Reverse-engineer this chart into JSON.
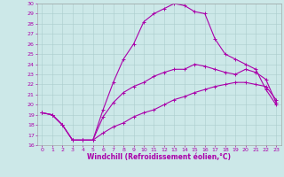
{
  "background_color": "#cce8e8",
  "grid_color": "#aacccc",
  "line_color": "#aa00aa",
  "xlabel": "Windchill (Refroidissement éolien,°C)",
  "xlim": [
    -0.5,
    23.5
  ],
  "ylim": [
    16,
    30
  ],
  "xticks": [
    0,
    1,
    2,
    3,
    4,
    5,
    6,
    7,
    8,
    9,
    10,
    11,
    12,
    13,
    14,
    15,
    16,
    17,
    18,
    19,
    20,
    21,
    22,
    23
  ],
  "yticks": [
    16,
    17,
    18,
    19,
    20,
    21,
    22,
    23,
    24,
    25,
    26,
    27,
    28,
    29,
    30
  ],
  "line1_x": [
    0,
    1,
    2,
    3,
    4,
    5,
    6,
    7,
    8,
    9,
    10,
    11,
    12,
    13,
    14,
    15,
    16,
    17,
    18,
    19,
    20,
    21,
    22,
    23
  ],
  "line1_y": [
    19.2,
    19.0,
    18.0,
    16.5,
    16.5,
    16.5,
    18.8,
    20.2,
    21.2,
    21.8,
    22.2,
    22.8,
    23.2,
    23.5,
    23.5,
    24.0,
    23.8,
    23.5,
    23.2,
    23.0,
    23.5,
    23.2,
    22.5,
    20.2
  ],
  "line2_x": [
    0,
    1,
    2,
    3,
    4,
    5,
    6,
    7,
    8,
    9,
    10,
    11,
    12,
    13,
    14,
    15,
    16,
    17,
    18,
    19,
    20,
    21,
    22,
    23
  ],
  "line2_y": [
    19.2,
    19.0,
    18.0,
    16.5,
    16.5,
    16.5,
    19.5,
    22.2,
    24.5,
    26.0,
    28.2,
    29.0,
    29.5,
    30.0,
    29.8,
    29.2,
    29.0,
    26.5,
    25.0,
    24.5,
    24.0,
    23.5,
    21.5,
    20.0
  ],
  "line3_x": [
    0,
    1,
    2,
    3,
    4,
    5,
    6,
    7,
    8,
    9,
    10,
    11,
    12,
    13,
    14,
    15,
    16,
    17,
    18,
    19,
    20,
    21,
    22,
    23
  ],
  "line3_y": [
    19.2,
    19.0,
    18.0,
    16.5,
    16.5,
    16.5,
    17.2,
    17.8,
    18.2,
    18.8,
    19.2,
    19.5,
    20.0,
    20.5,
    20.8,
    21.2,
    21.5,
    21.8,
    22.0,
    22.2,
    22.2,
    22.0,
    21.8,
    20.5
  ],
  "linewidth": 0.8,
  "markersize": 2.5,
  "tick_fontsize": 4.5,
  "label_fontsize": 5.5
}
